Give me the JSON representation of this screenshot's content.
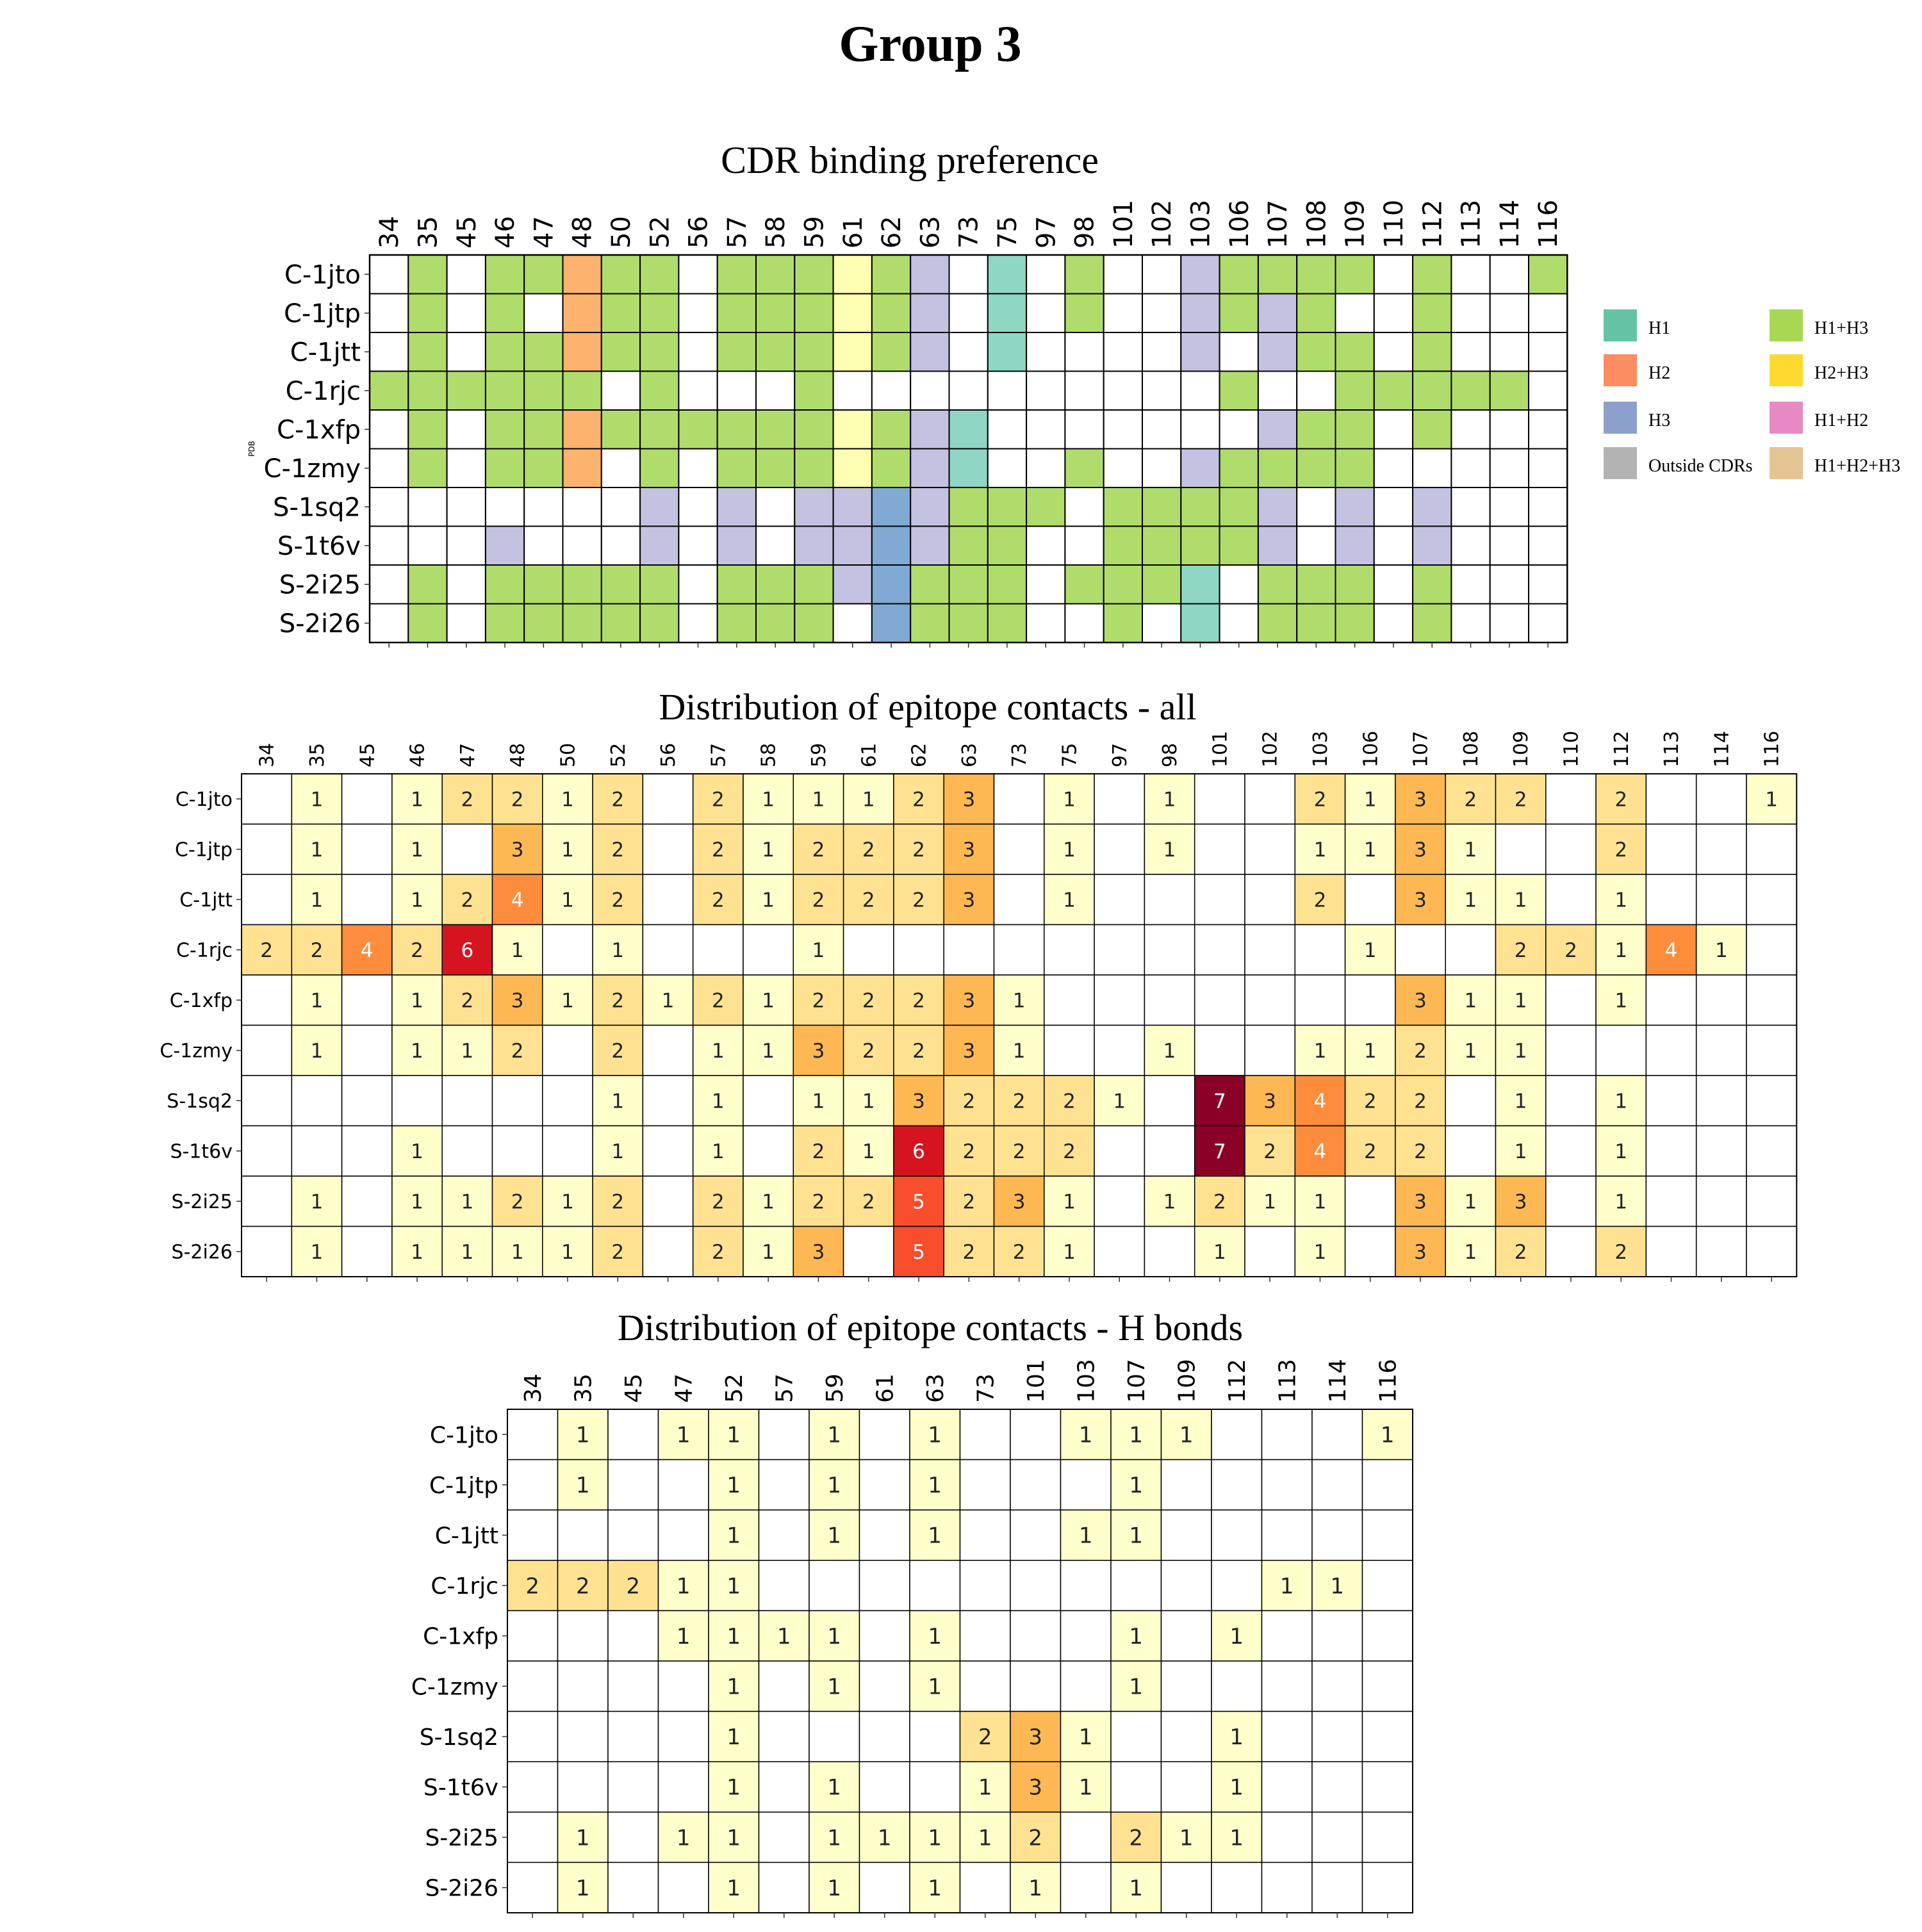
{
  "figure": {
    "title": "Group 3"
  },
  "chart_data": [
    {
      "type": "heatmap",
      "id": "cdr",
      "title": "CDR binding preference",
      "ylabel": "PDB",
      "columns": [
        "34",
        "35",
        "45",
        "46",
        "47",
        "48",
        "50",
        "52",
        "56",
        "57",
        "58",
        "59",
        "61",
        "62",
        "63",
        "73",
        "75",
        "97",
        "98",
        "101",
        "102",
        "103",
        "106",
        "107",
        "108",
        "109",
        "110",
        "112",
        "113",
        "114",
        "116"
      ],
      "rows": [
        "C-1jto",
        "C-1jtp",
        "C-1jtt",
        "C-1rjc",
        "C-1xfp",
        "C-1zmy",
        "S-1sq2",
        "S-1t6v",
        "S-2i25",
        "S-2i26"
      ],
      "cells": [
        [
          "",
          "H1+H3",
          "",
          "H1+H3",
          "H1+H3",
          "H2",
          "H1+H3",
          "H1+H3",
          "",
          "H1+H3",
          "H1+H3",
          "H1+H3",
          "H2+H3",
          "H1+H3",
          "H3",
          "",
          "H1",
          "",
          "H1+H3",
          "",
          "",
          "H3",
          "H1+H3",
          "H1+H3",
          "H1+H3",
          "H1+H3",
          "",
          "H1+H3",
          "",
          "",
          "H1+H3"
        ],
        [
          "",
          "H1+H3",
          "",
          "H1+H3",
          "",
          "H2",
          "H1+H3",
          "H1+H3",
          "",
          "H1+H3",
          "H1+H3",
          "H1+H3",
          "H2+H3",
          "H1+H3",
          "H3",
          "",
          "H1",
          "",
          "H1+H3",
          "",
          "",
          "H3",
          "H1+H3",
          "H3",
          "H1+H3",
          "",
          "",
          "H1+H3",
          "",
          "",
          ""
        ],
        [
          "",
          "H1+H3",
          "",
          "H1+H3",
          "H1+H3",
          "H2",
          "H1+H3",
          "H1+H3",
          "",
          "H1+H3",
          "H1+H3",
          "H1+H3",
          "H2+H3",
          "H1+H3",
          "H3",
          "",
          "H1",
          "",
          "",
          "",
          "",
          "H3",
          "",
          "H3",
          "H1+H3",
          "H1+H3",
          "",
          "H1+H3",
          "",
          "",
          ""
        ],
        [
          "H1+H3",
          "H1+H3",
          "H1+H3",
          "H1+H3",
          "H1+H3",
          "H1+H3",
          "",
          "H1+H3",
          "",
          "",
          "",
          "H1+H3",
          "",
          "",
          "",
          "",
          "",
          "",
          "",
          "",
          "",
          "",
          "H1+H3",
          "",
          "",
          "H1+H3",
          "H1+H3",
          "H1+H3",
          "H1+H3",
          "H1+H3",
          ""
        ],
        [
          "",
          "H1+H3",
          "",
          "H1+H3",
          "H1+H3",
          "H2",
          "H1+H3",
          "H1+H3",
          "H1+H3",
          "H1+H3",
          "H1+H3",
          "H1+H3",
          "H2+H3",
          "H1+H3",
          "H3",
          "H1",
          "",
          "",
          "",
          "",
          "",
          "",
          "",
          "H3",
          "H1+H3",
          "H1+H3",
          "",
          "H1+H3",
          "",
          "",
          ""
        ],
        [
          "",
          "H1+H3",
          "",
          "H1+H3",
          "H1+H3",
          "H2",
          "",
          "H1+H3",
          "",
          "H1+H3",
          "H1+H3",
          "H1+H3",
          "H2+H3",
          "H1+H3",
          "H3",
          "H1",
          "",
          "",
          "H1+H3",
          "",
          "",
          "H3",
          "H1+H3",
          "H1+H3",
          "H1+H3",
          "H1+H3",
          "",
          "",
          "",
          "",
          ""
        ],
        [
          "",
          "",
          "",
          "",
          "",
          "",
          "",
          "H3",
          "",
          "H3",
          "",
          "H3",
          "H3",
          "H3",
          "H3",
          "H1+H3",
          "H1+H3",
          "H1+H3",
          "",
          "H1+H3",
          "H1+H3",
          "H1+H3",
          "H1+H3",
          "H3",
          "",
          "H3",
          "",
          "H3",
          "",
          "",
          ""
        ],
        [
          "",
          "",
          "",
          "H3",
          "",
          "",
          "",
          "H3",
          "",
          "H3",
          "",
          "H3",
          "H3",
          "H3",
          "H3",
          "H1+H3",
          "H1+H3",
          "",
          "",
          "H1+H3",
          "H1+H3",
          "H1+H3",
          "H1+H3",
          "H3",
          "",
          "H3",
          "",
          "H3",
          "",
          "",
          ""
        ],
        [
          "",
          "H1+H3",
          "",
          "H1+H3",
          "H1+H3",
          "H1+H3",
          "H1+H3",
          "H1+H3",
          "",
          "H1+H3",
          "H1+H3",
          "H1+H3",
          "H3",
          "H3",
          "H1+H3",
          "H1+H3",
          "H1+H3",
          "",
          "H1+H3",
          "H1+H3",
          "H1+H3",
          "H1",
          "",
          "H1+H3",
          "H1+H3",
          "H1+H3",
          "",
          "H1+H3",
          "",
          "",
          ""
        ],
        [
          "",
          "H1+H3",
          "",
          "H1+H3",
          "H1+H3",
          "H1+H3",
          "H1+H3",
          "H1+H3",
          "",
          "H1+H3",
          "H1+H3",
          "H1+H3",
          "",
          "H3",
          "H1+H3",
          "H1+H3",
          "H1+H3",
          "",
          "",
          "H1+H3",
          "",
          "H1",
          "",
          "H1+H3",
          "H1+H3",
          "H1+H3",
          "",
          "H1+H3",
          "",
          "",
          ""
        ]
      ],
      "legend": [
        {
          "label": "H1",
          "color": "#66c2a5"
        },
        {
          "label": "H2",
          "color": "#fc8d62"
        },
        {
          "label": "H3",
          "color": "#8da0cb"
        },
        {
          "label": "Outside CDRs",
          "color": "#b3b3b3"
        },
        {
          "label": "H1+H3",
          "color": "#a6d854"
        },
        {
          "label": "H2+H3",
          "color": "#ffd92f"
        },
        {
          "label": "H1+H2",
          "color": "#e78ac3"
        },
        {
          "label": "H1+H2+H3",
          "color": "#e5c494"
        }
      ],
      "legend_position": "right",
      "cell_colors": {
        "H1": "#8fd6c4",
        "H2": "#fbb36d",
        "H3": "#80aad3",
        "H1+H3": "#b0dc6c",
        "H2+H3": "#ffffb3"
      },
      "dark_h3_columns": [
        "62"
      ],
      "light_h3_color": "#c3c2e0"
    },
    {
      "type": "heatmap",
      "id": "all",
      "title": "Distribution of epitope contacts - all",
      "columns": [
        "34",
        "35",
        "45",
        "46",
        "47",
        "48",
        "50",
        "52",
        "56",
        "57",
        "58",
        "59",
        "61",
        "62",
        "63",
        "73",
        "75",
        "97",
        "98",
        "101",
        "102",
        "103",
        "106",
        "107",
        "108",
        "109",
        "110",
        "112",
        "113",
        "114",
        "116"
      ],
      "rows": [
        "C-1jto",
        "C-1jtp",
        "C-1jtt",
        "C-1rjc",
        "C-1xfp",
        "C-1zmy",
        "S-1sq2",
        "S-1t6v",
        "S-2i25",
        "S-2i26"
      ],
      "values": [
        [
          0,
          1,
          0,
          1,
          2,
          2,
          1,
          2,
          0,
          2,
          1,
          1,
          1,
          2,
          3,
          0,
          1,
          0,
          1,
          0,
          0,
          2,
          1,
          3,
          2,
          2,
          0,
          2,
          0,
          0,
          1
        ],
        [
          0,
          1,
          0,
          1,
          0,
          3,
          1,
          2,
          0,
          2,
          1,
          2,
          2,
          2,
          3,
          0,
          1,
          0,
          1,
          0,
          0,
          1,
          1,
          3,
          1,
          0,
          0,
          2,
          0,
          0,
          0
        ],
        [
          0,
          1,
          0,
          1,
          2,
          4,
          1,
          2,
          0,
          2,
          1,
          2,
          2,
          2,
          3,
          0,
          1,
          0,
          0,
          0,
          0,
          2,
          0,
          3,
          1,
          1,
          0,
          1,
          0,
          0,
          0
        ],
        [
          2,
          2,
          4,
          2,
          6,
          1,
          0,
          1,
          0,
          0,
          0,
          1,
          0,
          0,
          0,
          0,
          0,
          0,
          0,
          0,
          0,
          0,
          1,
          0,
          0,
          2,
          2,
          1,
          4,
          1,
          0
        ],
        [
          0,
          1,
          0,
          1,
          2,
          3,
          1,
          2,
          1,
          2,
          1,
          2,
          2,
          2,
          3,
          1,
          0,
          0,
          0,
          0,
          0,
          0,
          0,
          3,
          1,
          1,
          0,
          1,
          0,
          0,
          0
        ],
        [
          0,
          1,
          0,
          1,
          1,
          2,
          0,
          2,
          0,
          1,
          1,
          3,
          2,
          2,
          3,
          1,
          0,
          0,
          1,
          0,
          0,
          1,
          1,
          2,
          1,
          1,
          0,
          0,
          0,
          0,
          0
        ],
        [
          0,
          0,
          0,
          0,
          0,
          0,
          0,
          1,
          0,
          1,
          0,
          1,
          1,
          3,
          2,
          2,
          2,
          1,
          0,
          7,
          3,
          4,
          2,
          2,
          0,
          1,
          0,
          1,
          0,
          0,
          0
        ],
        [
          0,
          0,
          0,
          1,
          0,
          0,
          0,
          1,
          0,
          1,
          0,
          2,
          1,
          6,
          2,
          2,
          2,
          0,
          0,
          7,
          2,
          4,
          2,
          2,
          0,
          1,
          0,
          1,
          0,
          0,
          0
        ],
        [
          0,
          1,
          0,
          1,
          1,
          2,
          1,
          2,
          0,
          2,
          1,
          2,
          2,
          5,
          2,
          3,
          1,
          0,
          1,
          2,
          1,
          1,
          0,
          3,
          1,
          3,
          0,
          1,
          0,
          0,
          0
        ],
        [
          0,
          1,
          0,
          1,
          1,
          1,
          1,
          2,
          0,
          2,
          1,
          3,
          0,
          5,
          2,
          2,
          1,
          0,
          0,
          1,
          0,
          1,
          0,
          3,
          1,
          2,
          0,
          2,
          0,
          0,
          0
        ]
      ]
    },
    {
      "type": "heatmap",
      "id": "hb",
      "title": "Distribution of epitope contacts - H bonds",
      "columns": [
        "34",
        "35",
        "45",
        "47",
        "52",
        "57",
        "59",
        "61",
        "63",
        "73",
        "101",
        "103",
        "107",
        "109",
        "112",
        "113",
        "114",
        "116"
      ],
      "rows": [
        "C-1jto",
        "C-1jtp",
        "C-1jtt",
        "C-1rjc",
        "C-1xfp",
        "C-1zmy",
        "S-1sq2",
        "S-1t6v",
        "S-2i25",
        "S-2i26"
      ],
      "values": [
        [
          0,
          1,
          0,
          1,
          1,
          0,
          1,
          0,
          1,
          0,
          0,
          1,
          1,
          1,
          0,
          0,
          0,
          1
        ],
        [
          0,
          1,
          0,
          0,
          1,
          0,
          1,
          0,
          1,
          0,
          0,
          0,
          1,
          0,
          0,
          0,
          0,
          0
        ],
        [
          0,
          0,
          0,
          0,
          1,
          0,
          1,
          0,
          1,
          0,
          0,
          1,
          1,
          0,
          0,
          0,
          0,
          0
        ],
        [
          2,
          2,
          2,
          1,
          1,
          0,
          0,
          0,
          0,
          0,
          0,
          0,
          0,
          0,
          0,
          1,
          1,
          0
        ],
        [
          0,
          0,
          0,
          1,
          1,
          1,
          1,
          0,
          1,
          0,
          0,
          0,
          1,
          0,
          1,
          0,
          0,
          0
        ],
        [
          0,
          0,
          0,
          0,
          1,
          0,
          1,
          0,
          1,
          0,
          0,
          0,
          1,
          0,
          0,
          0,
          0,
          0
        ],
        [
          0,
          0,
          0,
          0,
          1,
          0,
          0,
          0,
          0,
          2,
          3,
          1,
          0,
          0,
          1,
          0,
          0,
          0
        ],
        [
          0,
          0,
          0,
          0,
          1,
          0,
          1,
          0,
          0,
          1,
          3,
          1,
          0,
          0,
          1,
          0,
          0,
          0
        ],
        [
          0,
          1,
          0,
          1,
          1,
          0,
          1,
          1,
          1,
          1,
          2,
          0,
          2,
          1,
          1,
          0,
          0,
          0
        ],
        [
          0,
          1,
          0,
          0,
          1,
          0,
          1,
          0,
          1,
          0,
          1,
          0,
          1,
          0,
          0,
          0,
          0,
          0
        ]
      ]
    }
  ]
}
